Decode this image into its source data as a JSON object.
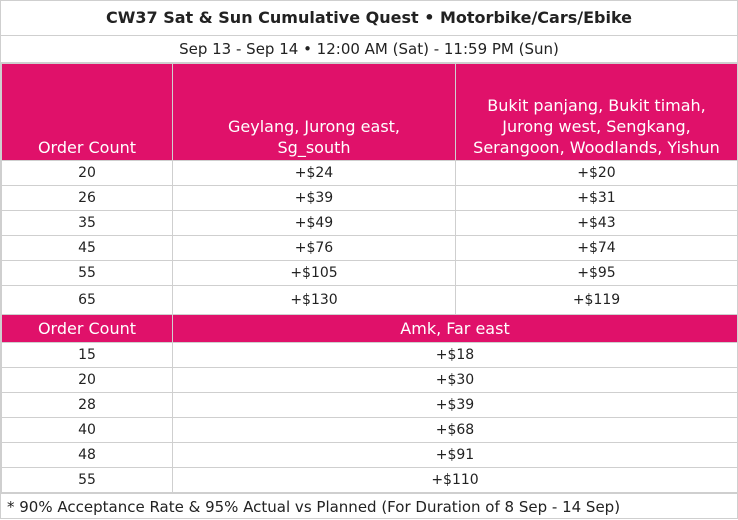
{
  "title": "CW37 Sat & Sun Cumulative Quest • Motorbike/Cars/Ebike",
  "subtitle": "Sep 13 - Sep 14 • 12:00 AM (Sat) - 11:59 PM (Sun)",
  "table1": {
    "col1": "Order Count",
    "col2": "Geylang, Jurong east, Sg_south",
    "col3": "Bukit panjang, Bukit timah, Jurong west, Sengkang, Serangoon, Woodlands, Yishun",
    "rows": [
      [
        "20",
        "+$24",
        "+$20"
      ],
      [
        "26",
        "+$39",
        "+$31"
      ],
      [
        "35",
        "+$49",
        "+$43"
      ],
      [
        "45",
        "+$76",
        "+$74"
      ],
      [
        "55",
        "+$105",
        "+$95"
      ],
      [
        "65",
        "+$130",
        "+$119"
      ]
    ]
  },
  "table2": {
    "col1": "Order Count",
    "col2": "Amk, Far east",
    "rows": [
      [
        "15",
        "+$18"
      ],
      [
        "20",
        "+$30"
      ],
      [
        "28",
        "+$39"
      ],
      [
        "40",
        "+$68"
      ],
      [
        "48",
        "+$91"
      ],
      [
        "55",
        "+$110"
      ]
    ]
  },
  "footnote": "* 90% Acceptance Rate & 95% Actual vs Planned (For Duration of 8 Sep - 14 Sep)",
  "colors": {
    "accent": "#e0116a"
  }
}
